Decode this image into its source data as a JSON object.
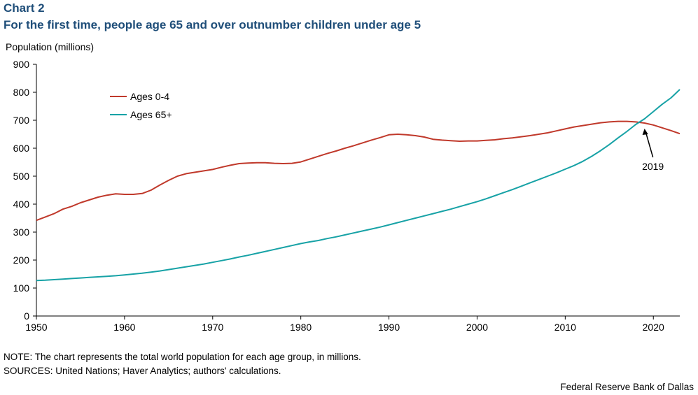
{
  "header": {
    "label": "Chart 2",
    "title": "For the first time, people age 65 and over outnumber children under age 5"
  },
  "notes": {
    "note": "NOTE: The chart represents the total world population for each age group, in millions.",
    "sources": "SOURCES: United Nations; Haver Analytics; authors' calculations.",
    "credit": "Federal Reserve Bank of Dallas"
  },
  "chart_data": {
    "type": "line",
    "ylabel": "Population (millions)",
    "xlabel": "",
    "xlim": [
      1950,
      2023
    ],
    "ylim": [
      0,
      900
    ],
    "x_ticks": [
      1950,
      1960,
      1970,
      1980,
      1990,
      2000,
      2010,
      2020
    ],
    "y_ticks": [
      0,
      100,
      200,
      300,
      400,
      500,
      600,
      700,
      800,
      900
    ],
    "grid": false,
    "legend_position": "top-left",
    "x": [
      1950,
      1951,
      1952,
      1953,
      1954,
      1955,
      1956,
      1957,
      1958,
      1959,
      1960,
      1961,
      1962,
      1963,
      1964,
      1965,
      1966,
      1967,
      1968,
      1969,
      1970,
      1971,
      1972,
      1973,
      1974,
      1975,
      1976,
      1977,
      1978,
      1979,
      1980,
      1981,
      1982,
      1983,
      1984,
      1985,
      1986,
      1987,
      1988,
      1989,
      1990,
      1991,
      1992,
      1993,
      1994,
      1995,
      1996,
      1997,
      1998,
      1999,
      2000,
      2001,
      2002,
      2003,
      2004,
      2005,
      2006,
      2007,
      2008,
      2009,
      2010,
      2011,
      2012,
      2013,
      2014,
      2015,
      2016,
      2017,
      2018,
      2019,
      2020,
      2021,
      2022,
      2023
    ],
    "series": [
      {
        "name": "Ages 0-4",
        "color": "#c0392b",
        "values": [
          342,
          354,
          366,
          382,
          392,
          405,
          415,
          425,
          432,
          437,
          435,
          435,
          438,
          450,
          468,
          485,
          500,
          509,
          514,
          519,
          524,
          532,
          539,
          545,
          547,
          548,
          548,
          546,
          545,
          546,
          551,
          561,
          571,
          581,
          590,
          600,
          609,
          619,
          629,
          638,
          648,
          650,
          648,
          645,
          640,
          632,
          629,
          627,
          625,
          626,
          626,
          628,
          630,
          634,
          637,
          641,
          645,
          650,
          655,
          662,
          669,
          676,
          681,
          686,
          691,
          694,
          696,
          696,
          694,
          690,
          683,
          673,
          663,
          652
        ]
      },
      {
        "name": "Ages 65+",
        "color": "#17a2a6",
        "values": [
          127,
          128,
          130,
          132,
          134,
          136,
          138,
          140,
          142,
          144,
          147,
          150,
          153,
          157,
          161,
          166,
          171,
          176,
          181,
          186,
          192,
          198,
          204,
          211,
          217,
          224,
          231,
          238,
          245,
          252,
          259,
          265,
          270,
          277,
          283,
          290,
          297,
          304,
          311,
          318,
          326,
          334,
          342,
          350,
          358,
          366,
          374,
          382,
          391,
          400,
          409,
          419,
          430,
          441,
          452,
          464,
          476,
          488,
          500,
          512,
          525,
          538,
          553,
          571,
          591,
          613,
          637,
          660,
          685,
          705,
          731,
          757,
          780,
          810
        ]
      }
    ],
    "annotations": [
      {
        "text": "2019",
        "x": 2019,
        "y": 690
      }
    ]
  }
}
